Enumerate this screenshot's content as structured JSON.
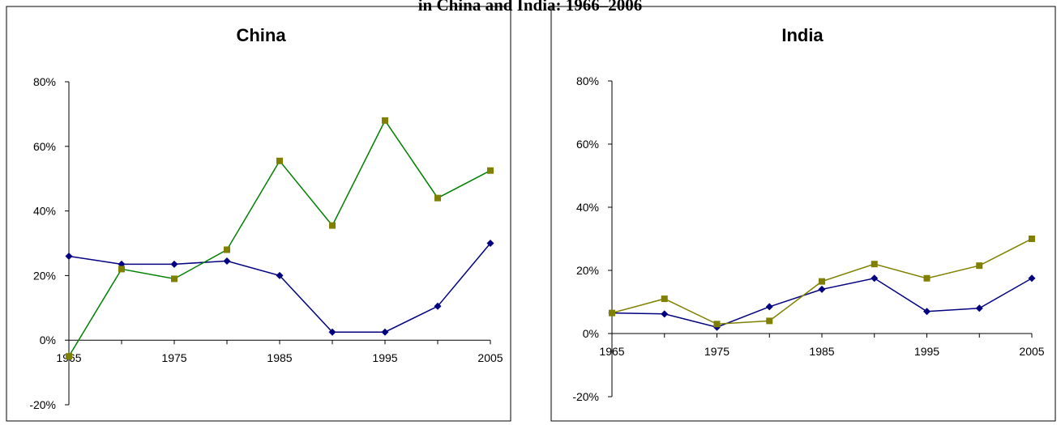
{
  "figure": {
    "title": "in China and India: 1966–2006"
  },
  "chart_data": [
    {
      "type": "line",
      "title": "China",
      "x": [
        1965,
        1970,
        1975,
        1980,
        1985,
        1990,
        1995,
        2000,
        2005
      ],
      "xticks": [
        1965,
        1975,
        1985,
        1995,
        2005
      ],
      "ylim": [
        -20,
        80
      ],
      "yticks": [
        -20,
        0,
        20,
        40,
        60,
        80
      ],
      "ytick_labels": [
        "-20%",
        "0%",
        "20%",
        "40%",
        "60%",
        "80%"
      ],
      "grid": false,
      "legend": "none",
      "series": [
        {
          "values": [
            26,
            23.5,
            23.5,
            24.5,
            20,
            2.5,
            2.5,
            10.5,
            30
          ],
          "line_color": "#000080",
          "marker_color": "#000080",
          "marker": "diamond"
        },
        {
          "values": [
            -5,
            22,
            19,
            28,
            55.5,
            35.5,
            68,
            44,
            52.5
          ],
          "line_color": "#008000",
          "marker_color": "#808000",
          "marker": "square"
        }
      ]
    },
    {
      "type": "line",
      "title": "India",
      "x": [
        1965,
        1970,
        1975,
        1980,
        1985,
        1990,
        1995,
        2000,
        2005
      ],
      "xticks": [
        1965,
        1975,
        1985,
        1995,
        2005
      ],
      "ylim": [
        -20,
        80
      ],
      "yticks": [
        -20,
        0,
        20,
        40,
        60,
        80
      ],
      "ytick_labels": [
        "-20%",
        "0%",
        "20%",
        "40%",
        "60%",
        "80%"
      ],
      "grid": false,
      "legend": "none",
      "series": [
        {
          "values": [
            6.5,
            6.2,
            2,
            8.5,
            14,
            17.5,
            7,
            8,
            17.5
          ],
          "line_color": "#000080",
          "marker_color": "#000080",
          "marker": "diamond"
        },
        {
          "values": [
            6.5,
            11,
            3,
            4,
            16.5,
            22,
            17.5,
            21.5,
            30
          ],
          "line_color": "#808000",
          "marker_color": "#808000",
          "marker": "square"
        }
      ]
    }
  ]
}
